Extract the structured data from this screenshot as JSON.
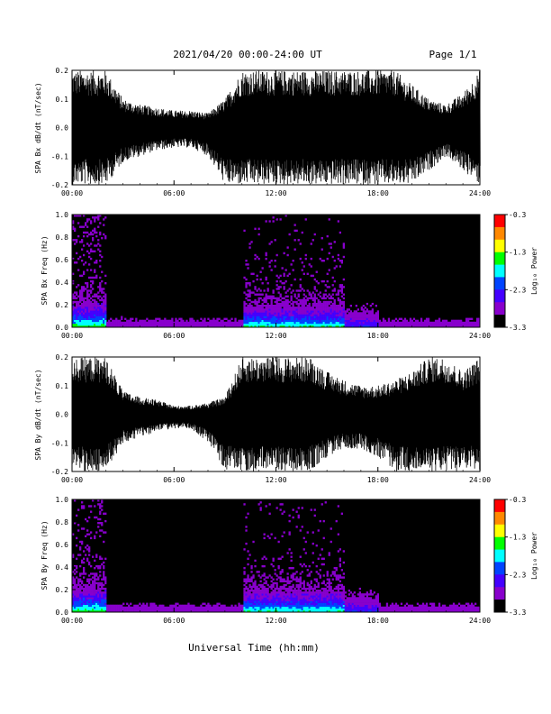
{
  "header": {
    "title": "2021/04/20  00:00-24:00 UT",
    "page": "Page 1/1"
  },
  "colorbar": {
    "label": "Log₁₀ Power",
    "ticks": [
      "-0.3",
      "-1.3",
      "-2.3",
      "-3.3"
    ],
    "colors": [
      "#ff0000",
      "#ff8800",
      "#ffff00",
      "#00ff00",
      "#00ffff",
      "#0044ff",
      "#4400ff",
      "#8800cc",
      "#000000"
    ]
  },
  "chart_data": [
    {
      "type": "line",
      "ylabel": "SPA Bx dB/dt (nT/sec)",
      "xlabel": "",
      "x_ticks": [
        "00:00",
        "06:00",
        "12:00",
        "18:00",
        "24:00"
      ],
      "y_ticks": [
        "0.2",
        "0.1",
        "0.0",
        "-0.1",
        "-0.2"
      ],
      "ylim": [
        -0.2,
        0.2
      ],
      "xlim_hours": [
        0,
        24
      ],
      "series": [
        {
          "x": [
            0,
            1,
            2,
            3,
            4,
            5,
            6,
            7,
            8,
            9,
            10,
            11,
            12,
            13,
            14,
            15,
            16,
            17,
            18,
            19,
            20,
            21,
            22,
            23,
            24
          ],
          "upper": [
            0.2,
            0.2,
            0.2,
            0.1,
            0.08,
            0.07,
            0.06,
            0.06,
            0.05,
            0.1,
            0.2,
            0.2,
            0.2,
            0.2,
            0.2,
            0.2,
            0.2,
            0.2,
            0.2,
            0.2,
            0.15,
            0.1,
            0.08,
            0.12,
            0.2
          ],
          "lower": [
            -0.2,
            -0.2,
            -0.2,
            -0.12,
            -0.1,
            -0.08,
            -0.07,
            -0.07,
            -0.1,
            -0.2,
            -0.2,
            -0.2,
            -0.2,
            -0.2,
            -0.2,
            -0.2,
            -0.2,
            -0.2,
            -0.2,
            -0.2,
            -0.2,
            -0.15,
            -0.1,
            -0.15,
            -0.2
          ]
        }
      ]
    },
    {
      "type": "heatmap",
      "ylabel": "SPA Bx Freq (Hz)",
      "x_ticks": [
        "00:00",
        "06:00",
        "12:00",
        "18:00",
        "24:00"
      ],
      "y_ticks": [
        "1.0",
        "0.8",
        "0.6",
        "0.4",
        "0.2",
        "0.0"
      ],
      "ylim": [
        0,
        1.0
      ],
      "zlim": [
        -3.3,
        -0.3
      ]
    },
    {
      "type": "line",
      "ylabel": "SPA By dB/dt (nT/sec)",
      "xlabel": "",
      "x_ticks": [
        "00:00",
        "06:00",
        "12:00",
        "18:00",
        "24:00"
      ],
      "y_ticks": [
        "0.2",
        "0.1",
        "0.0",
        "-0.1",
        "-0.2"
      ],
      "ylim": [
        -0.2,
        0.2
      ],
      "xlim_hours": [
        0,
        24
      ],
      "series": [
        {
          "x": [
            0,
            1,
            2,
            3,
            4,
            5,
            6,
            7,
            8,
            9,
            10,
            11,
            12,
            13,
            14,
            15,
            16,
            17,
            18,
            19,
            20,
            21,
            22,
            23,
            24
          ],
          "upper": [
            0.2,
            0.2,
            0.2,
            0.08,
            0.06,
            0.05,
            0.03,
            0.03,
            0.04,
            0.06,
            0.2,
            0.2,
            0.2,
            0.2,
            0.2,
            0.15,
            0.12,
            0.1,
            0.1,
            0.12,
            0.15,
            0.2,
            0.2,
            0.15,
            0.2
          ],
          "lower": [
            -0.2,
            -0.2,
            -0.2,
            -0.1,
            -0.08,
            -0.06,
            -0.05,
            -0.05,
            -0.1,
            -0.2,
            -0.2,
            -0.2,
            -0.2,
            -0.2,
            -0.2,
            -0.15,
            -0.12,
            -0.12,
            -0.15,
            -0.2,
            -0.2,
            -0.2,
            -0.2,
            -0.2,
            -0.2
          ]
        }
      ]
    },
    {
      "type": "heatmap",
      "ylabel": "SPA By Freq (Hz)",
      "x_ticks": [
        "00:00",
        "06:00",
        "12:00",
        "18:00",
        "24:00"
      ],
      "y_ticks": [
        "1.0",
        "0.8",
        "0.6",
        "0.4",
        "0.2",
        "0.0"
      ],
      "ylim": [
        0,
        1.0
      ],
      "zlim": [
        -3.3,
        -0.3
      ]
    }
  ],
  "xaxis": {
    "label": "Universal Time (hh:mm)"
  }
}
